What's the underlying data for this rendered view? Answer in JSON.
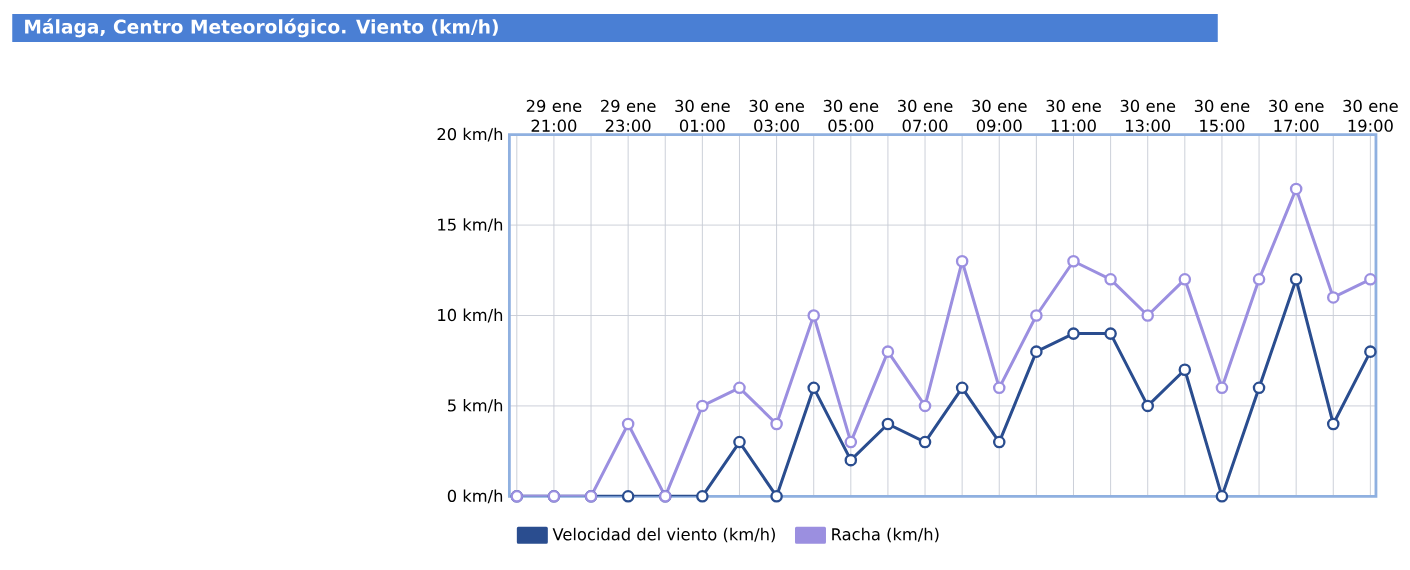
{
  "chart_data": {
    "type": "line",
    "title": "Málaga, Centro Meteorológico. Viento (km/h)",
    "categories": [
      null,
      "29 ene 21:00",
      null,
      "29 ene 23:00",
      null,
      "30 ene 01:00",
      null,
      "30 ene 03:00",
      null,
      "30 ene 05:00",
      null,
      "30 ene 07:00",
      null,
      "30 ene 09:00",
      null,
      "30 ene 11:00",
      null,
      "30 ene 13:00",
      null,
      "30 ene 15:00",
      null,
      "30 ene 17:00",
      null,
      "30 ene 19:00"
    ],
    "series": [
      {
        "name": "Velocidad del viento (km/h)",
        "color": "#2a4d8f",
        "values": [
          0,
          0,
          0,
          0,
          0,
          0,
          3,
          0,
          6,
          2,
          4,
          3,
          6,
          3,
          8,
          9,
          9,
          5,
          7,
          0,
          6,
          12,
          4,
          8
        ]
      },
      {
        "name": "Racha (km/h)",
        "color": "#9b8fe0",
        "values": [
          0,
          0,
          0,
          4,
          0,
          5,
          6,
          4,
          10,
          3,
          8,
          5,
          13,
          6,
          10,
          13,
          12,
          10,
          12,
          6,
          12,
          17,
          11,
          12
        ]
      }
    ],
    "ylim": [
      0,
      20
    ],
    "yticks": [
      {
        "value": 0,
        "label": "0 km/h"
      },
      {
        "value": 5,
        "label": "5 km/h"
      },
      {
        "value": 10,
        "label": "10 km/h"
      },
      {
        "value": 15,
        "label": "15 km/h"
      },
      {
        "value": 20,
        "label": "20 km/h"
      }
    ],
    "grid": true,
    "legend": "bottom left",
    "marker": "circle",
    "line_style": "solid"
  }
}
